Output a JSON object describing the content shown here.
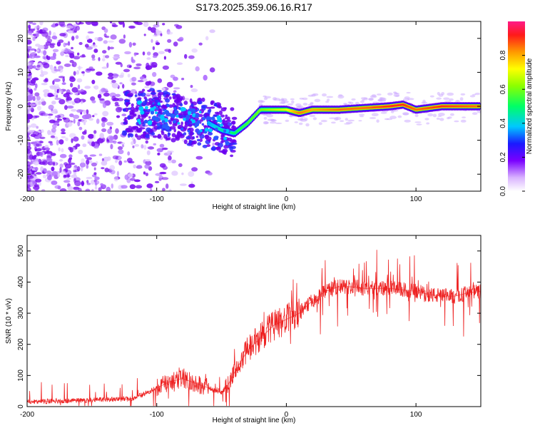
{
  "title": "S173.2025.359.06.16.R17",
  "chart_data": [
    {
      "type": "heatmap",
      "title": "",
      "xlabel": "Height of straight line (km)",
      "ylabel": "Frequency (Hz)",
      "xlim": [
        -200,
        150
      ],
      "ylim": [
        -25,
        25
      ],
      "xticks": [
        "-200",
        "-100",
        "0",
        "100"
      ],
      "yticks": [
        "-20",
        "-10",
        "0",
        "10",
        "20"
      ],
      "colorbar": {
        "label": "Normalized spectral amplitude",
        "range": [
          0,
          1
        ],
        "ticks": [
          "0.0",
          "0.2",
          "0.4",
          "0.6",
          "0.8"
        ]
      },
      "ridge": {
        "x": [
          -120,
          -100,
          -80,
          -60,
          -50,
          -40,
          -30,
          -20,
          -10,
          0,
          10,
          20,
          40,
          60,
          80,
          90,
          100,
          120,
          150
        ],
        "freq": [
          -2,
          -2,
          -4,
          -5,
          -7,
          -8,
          -5,
          -1,
          -1,
          -1,
          -2,
          -1,
          -1,
          -0.5,
          0,
          0.5,
          -1,
          0,
          0
        ],
        "amplitude": [
          0.2,
          0.25,
          0.3,
          0.35,
          0.45,
          0.5,
          0.55,
          0.6,
          0.65,
          0.7,
          0.85,
          0.8,
          0.85,
          0.85,
          0.9,
          0.9,
          0.85,
          0.9,
          0.85
        ]
      }
    },
    {
      "type": "line",
      "title": "",
      "xlabel": "Height of straight line (km)",
      "ylabel": "SNR (10 * v/v)",
      "xlim": [
        -200,
        150
      ],
      "ylim": [
        0,
        550
      ],
      "xticks": [
        "-200",
        "-100",
        "0",
        "100"
      ],
      "yticks": [
        "0",
        "100",
        "200",
        "300",
        "400",
        "500"
      ],
      "series": [
        {
          "name": "SNR",
          "color": "#ee2222",
          "x": [
            -200,
            -180,
            -160,
            -140,
            -120,
            -110,
            -100,
            -90,
            -80,
            -70,
            -60,
            -50,
            -45,
            -40,
            -30,
            -20,
            -10,
            0,
            10,
            20,
            30,
            40,
            50,
            60,
            70,
            80,
            90,
            100,
            110,
            120,
            130,
            140,
            150
          ],
          "y": [
            15,
            18,
            20,
            22,
            25,
            40,
            60,
            80,
            90,
            75,
            60,
            45,
            70,
            110,
            180,
            220,
            260,
            280,
            300,
            340,
            370,
            385,
            385,
            380,
            380,
            380,
            375,
            370,
            360,
            355,
            355,
            365,
            370
          ]
        }
      ]
    }
  ]
}
